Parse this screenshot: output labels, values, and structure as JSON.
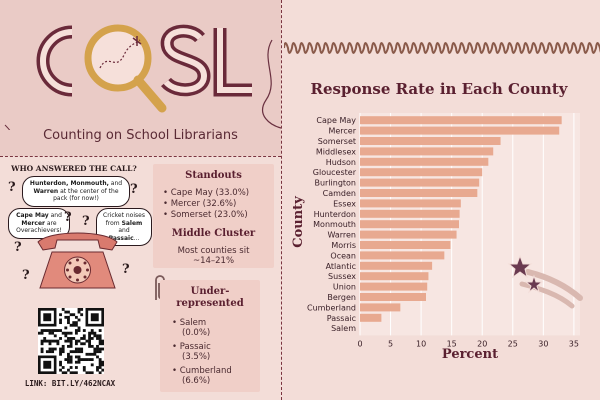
{
  "logo": {
    "text": "COSL",
    "subtitle": "Counting on School Librarians"
  },
  "who_answered": {
    "title": "WHO ANSWERED THE CALL?",
    "bubble_top": {
      "bold": "Hunterdon, Monmouth,",
      "mid": " and ",
      "bold2": "Warren",
      "rest": " at the center of the pack (for now!)"
    },
    "bubble_left": {
      "bold": "Cape May",
      "mid": " and ",
      "bold2": "Mercer",
      "rest": " are Overachievers!"
    },
    "bubble_right": {
      "pre": "Cricket noises from ",
      "bold": "Salem",
      "mid": " and ",
      "bold2": "Passaic",
      "rest": "..."
    }
  },
  "link": "LINK: BIT.LY/462NCAX",
  "standouts": {
    "title": "Standouts",
    "items": [
      "Cape May (33.0%)",
      "Mercer (32.6%)",
      "Somerset (23.0%)"
    ],
    "middle_title": "Middle Cluster",
    "middle_text_1": "Most counties sit",
    "middle_text_2": "~14–21%"
  },
  "underrepresented": {
    "title_1": "Under-",
    "title_2": "represented",
    "items": [
      {
        "name": "Salem",
        "value": "(0.0%)"
      },
      {
        "name": "Passaic",
        "value": "(3.5%)"
      },
      {
        "name": "Cumberland",
        "value": "(6.6%)"
      }
    ]
  },
  "colors": {
    "bar": "#e8a990",
    "accent": "#5a2030",
    "bg": "#f3ddd8"
  },
  "chart_data": {
    "type": "bar",
    "orientation": "horizontal",
    "title": "Response Rate in Each County",
    "xlabel": "Percent",
    "ylabel": "County",
    "xlim": [
      0,
      36
    ],
    "xticks": [
      0,
      5,
      10,
      15,
      20,
      25,
      30,
      35
    ],
    "grid": true,
    "categories": [
      "Cape May",
      "Mercer",
      "Somerset",
      "Middlesex",
      "Hudson",
      "Gloucester",
      "Burlington",
      "Camden",
      "Essex",
      "Hunterdon",
      "Monmouth",
      "Warren",
      "Morris",
      "Ocean",
      "Atlantic",
      "Sussex",
      "Union",
      "Bergen",
      "Cumberland",
      "Passaic",
      "Salem"
    ],
    "values": [
      33.0,
      32.6,
      23.0,
      21.8,
      21.0,
      20.0,
      19.5,
      19.2,
      16.5,
      16.3,
      16.2,
      15.8,
      14.8,
      13.8,
      11.8,
      11.2,
      11.0,
      10.8,
      6.6,
      3.5,
      0.0
    ]
  }
}
